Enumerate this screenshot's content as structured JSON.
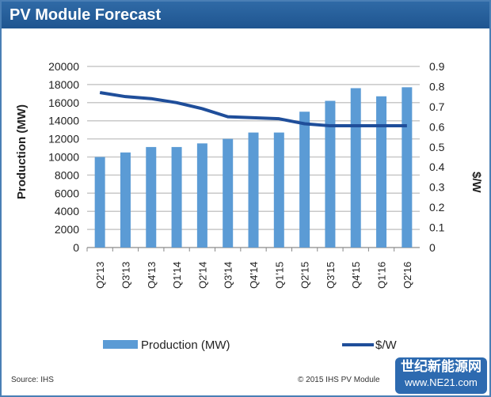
{
  "title": "PV Module Forecast",
  "footer": {
    "source": "Source: IHS",
    "copyright": "© 2015 IHS   PV Module",
    "watermark": "世纪新能源网",
    "watermark_url": "www.NE21.com"
  },
  "chart_data": {
    "type": "bar+line",
    "title": "PV Module Forecast",
    "categories": [
      "Q2'13",
      "Q3'13",
      "Q4'13",
      "Q1'14",
      "Q2'14",
      "Q3'14",
      "Q4'14",
      "Q1'15",
      "Q2'15",
      "Q3'15",
      "Q4'15",
      "Q1'16",
      "Q2'16"
    ],
    "series": [
      {
        "name": "Production (MW)",
        "type": "bar",
        "axis": "left",
        "color": "#5b9bd5",
        "values": [
          10000,
          10500,
          11100,
          11100,
          11500,
          12000,
          12700,
          12700,
          15000,
          16200,
          17600,
          16700,
          17700
        ]
      },
      {
        "name": "$/W",
        "type": "line",
        "axis": "right",
        "color": "#1f4e9a",
        "values": [
          0.77,
          0.75,
          0.74,
          0.72,
          0.69,
          0.65,
          0.645,
          0.64,
          0.615,
          0.605,
          0.605,
          0.605,
          0.605
        ]
      }
    ],
    "ylabel": "Production (MW)",
    "ylim": [
      0,
      20000
    ],
    "yticks": [
      0,
      2000,
      4000,
      6000,
      8000,
      10000,
      12000,
      14000,
      16000,
      18000,
      20000
    ],
    "y2label": "$/W",
    "y2lim": [
      0,
      0.9
    ],
    "y2ticks": [
      "0",
      "0.1",
      "0.2",
      "0.3",
      "0.4",
      "0.5",
      "0.6",
      "0.7",
      "0.8",
      "0.9"
    ],
    "grid": true,
    "legend": "bottom"
  }
}
